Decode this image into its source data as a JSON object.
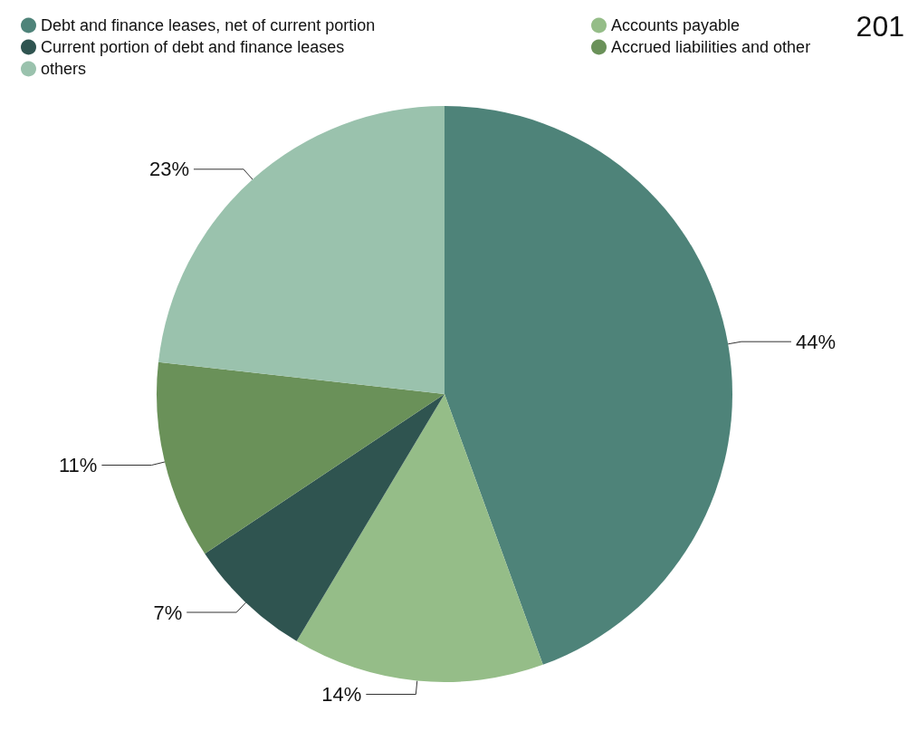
{
  "chart_data": {
    "type": "pie",
    "title": "201",
    "categories": [
      "Debt and finance leases, net of current portion",
      "Accounts payable",
      "Current portion of debt and finance leases",
      "Accrued liabilities and other",
      "others"
    ],
    "values": [
      44,
      14,
      7,
      11,
      23
    ],
    "value_labels": [
      "44%",
      "14%",
      "7%",
      "11%",
      "23%"
    ],
    "colors": [
      "#4e8379",
      "#95bd88",
      "#2f5450",
      "#6a9159",
      "#9ac2ad"
    ],
    "legend": "top left"
  }
}
